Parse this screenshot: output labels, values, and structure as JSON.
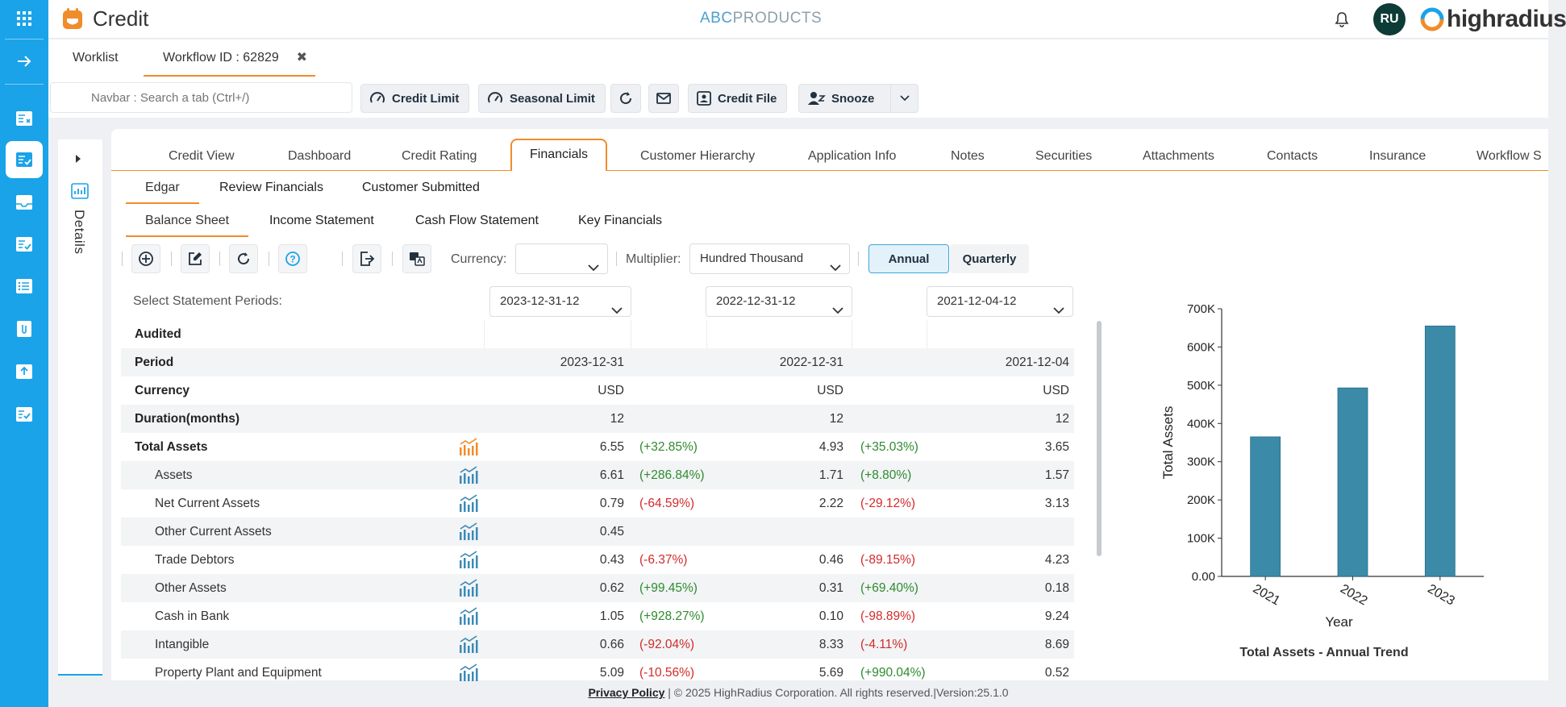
{
  "app": {
    "title": "Credit",
    "center_logo_abc": "ABC",
    "center_logo_rest": "PRODUCTS",
    "user_initials": "RU",
    "brand": "highradius"
  },
  "workflow_tabs": {
    "worklist": "Worklist",
    "workflow": "Workflow ID : 62829"
  },
  "toolbar": {
    "search_placeholder": "Navbar : Search a tab (Ctrl+/)",
    "credit_limit": "Credit Limit",
    "seasonal_limit": "Seasonal Limit",
    "credit_file": "Credit File",
    "snooze": "Snooze"
  },
  "side": {
    "details": "Details"
  },
  "main_tabs": [
    "Credit View",
    "Dashboard",
    "Credit Rating",
    "Financials",
    "Customer Hierarchy",
    "Application Info",
    "Notes",
    "Securities",
    "Attachments",
    "Contacts",
    "Insurance",
    "Workflow S"
  ],
  "sub_tabs": [
    "Edgar",
    "Review Financials",
    "Customer Submitted"
  ],
  "statement_tabs": [
    "Balance Sheet",
    "Income Statement",
    "Cash Flow Statement",
    "Key Financials"
  ],
  "controls": {
    "currency_label": "Currency:",
    "currency_value": "",
    "multiplier_label": "Multiplier:",
    "multiplier_value": "Hundred Thousand",
    "annual": "Annual",
    "quarterly": "Quarterly",
    "periods_label": "Select Statement Periods:",
    "periods": [
      "2023-12-31-12",
      "2022-12-31-12",
      "2021-12-04-12"
    ]
  },
  "table": {
    "rows": [
      {
        "name": "Audited",
        "bold": true,
        "vals": [
          "",
          "",
          ""
        ],
        "pcts": [
          "",
          ""
        ]
      },
      {
        "name": "Period",
        "bold": true,
        "vals": [
          "2023-12-31",
          "2022-12-31",
          "2021-12-04"
        ],
        "pcts": [
          "",
          ""
        ]
      },
      {
        "name": "Currency",
        "bold": true,
        "vals": [
          "USD",
          "USD",
          "USD"
        ],
        "pcts": [
          "",
          ""
        ]
      },
      {
        "name": "Duration(months)",
        "bold": true,
        "vals": [
          "12",
          "12",
          "12"
        ],
        "pcts": [
          "",
          ""
        ]
      },
      {
        "name": "Total Assets",
        "bold": true,
        "icon": "orange",
        "vals": [
          "6.55",
          "4.93",
          "3.65"
        ],
        "pcts": [
          "(+32.85%)",
          "(+35.03%)"
        ]
      },
      {
        "name": "Assets",
        "child": true,
        "icon": "blue",
        "vals": [
          "6.61",
          "1.71",
          "1.57"
        ],
        "pcts": [
          "(+286.84%)",
          "(+8.80%)"
        ]
      },
      {
        "name": "Net Current Assets",
        "child": true,
        "icon": "blue",
        "vals": [
          "0.79",
          "2.22",
          "3.13"
        ],
        "pcts": [
          "(-64.59%)",
          "(-29.12%)"
        ]
      },
      {
        "name": "Other Current Assets",
        "child": true,
        "icon": "blue",
        "vals": [
          "0.45",
          "",
          ""
        ],
        "pcts": [
          "",
          ""
        ]
      },
      {
        "name": "Trade Debtors",
        "child": true,
        "icon": "blue",
        "vals": [
          "0.43",
          "0.46",
          "4.23"
        ],
        "pcts": [
          "(-6.37%)",
          "(-89.15%)"
        ]
      },
      {
        "name": "Other Assets",
        "child": true,
        "icon": "blue",
        "vals": [
          "0.62",
          "0.31",
          "0.18"
        ],
        "pcts": [
          "(+99.45%)",
          "(+69.40%)"
        ]
      },
      {
        "name": "Cash in Bank",
        "child": true,
        "icon": "blue",
        "vals": [
          "1.05",
          "0.10",
          "9.24"
        ],
        "pcts": [
          "(+928.27%)",
          "(-98.89%)"
        ]
      },
      {
        "name": "Intangible",
        "child": true,
        "icon": "blue",
        "vals": [
          "0.66",
          "8.33",
          "8.69"
        ],
        "pcts": [
          "(-92.04%)",
          "(-4.11%)"
        ]
      },
      {
        "name": "Property Plant and Equipment",
        "child": true,
        "icon": "blue",
        "vals": [
          "5.09",
          "5.69",
          "0.52"
        ],
        "pcts": [
          "(-10.56%)",
          "(+990.04%)"
        ]
      }
    ]
  },
  "chart_data": {
    "type": "bar",
    "title": "Total Assets - Annual Trend",
    "xlabel": "Year",
    "ylabel": "Total Assets",
    "categories": [
      "2021",
      "2022",
      "2023"
    ],
    "values": [
      365000,
      493000,
      655000
    ],
    "ylim": [
      0,
      700000
    ],
    "yticks": [
      "0.00",
      "100K",
      "200K",
      "300K",
      "400K",
      "500K",
      "600K",
      "700K"
    ],
    "color": "#3a8aa8",
    "grid": false
  },
  "footer": {
    "privacy": "Privacy Policy",
    "copyright": " | © 2025 HighRadius Corporation. All rights reserved.|Version:25.1.0"
  },
  "colors": {
    "rail": "#1aa3e8",
    "accent": "#f08c2a",
    "positive": "#2e8b2e",
    "negative": "#d42a2a"
  }
}
